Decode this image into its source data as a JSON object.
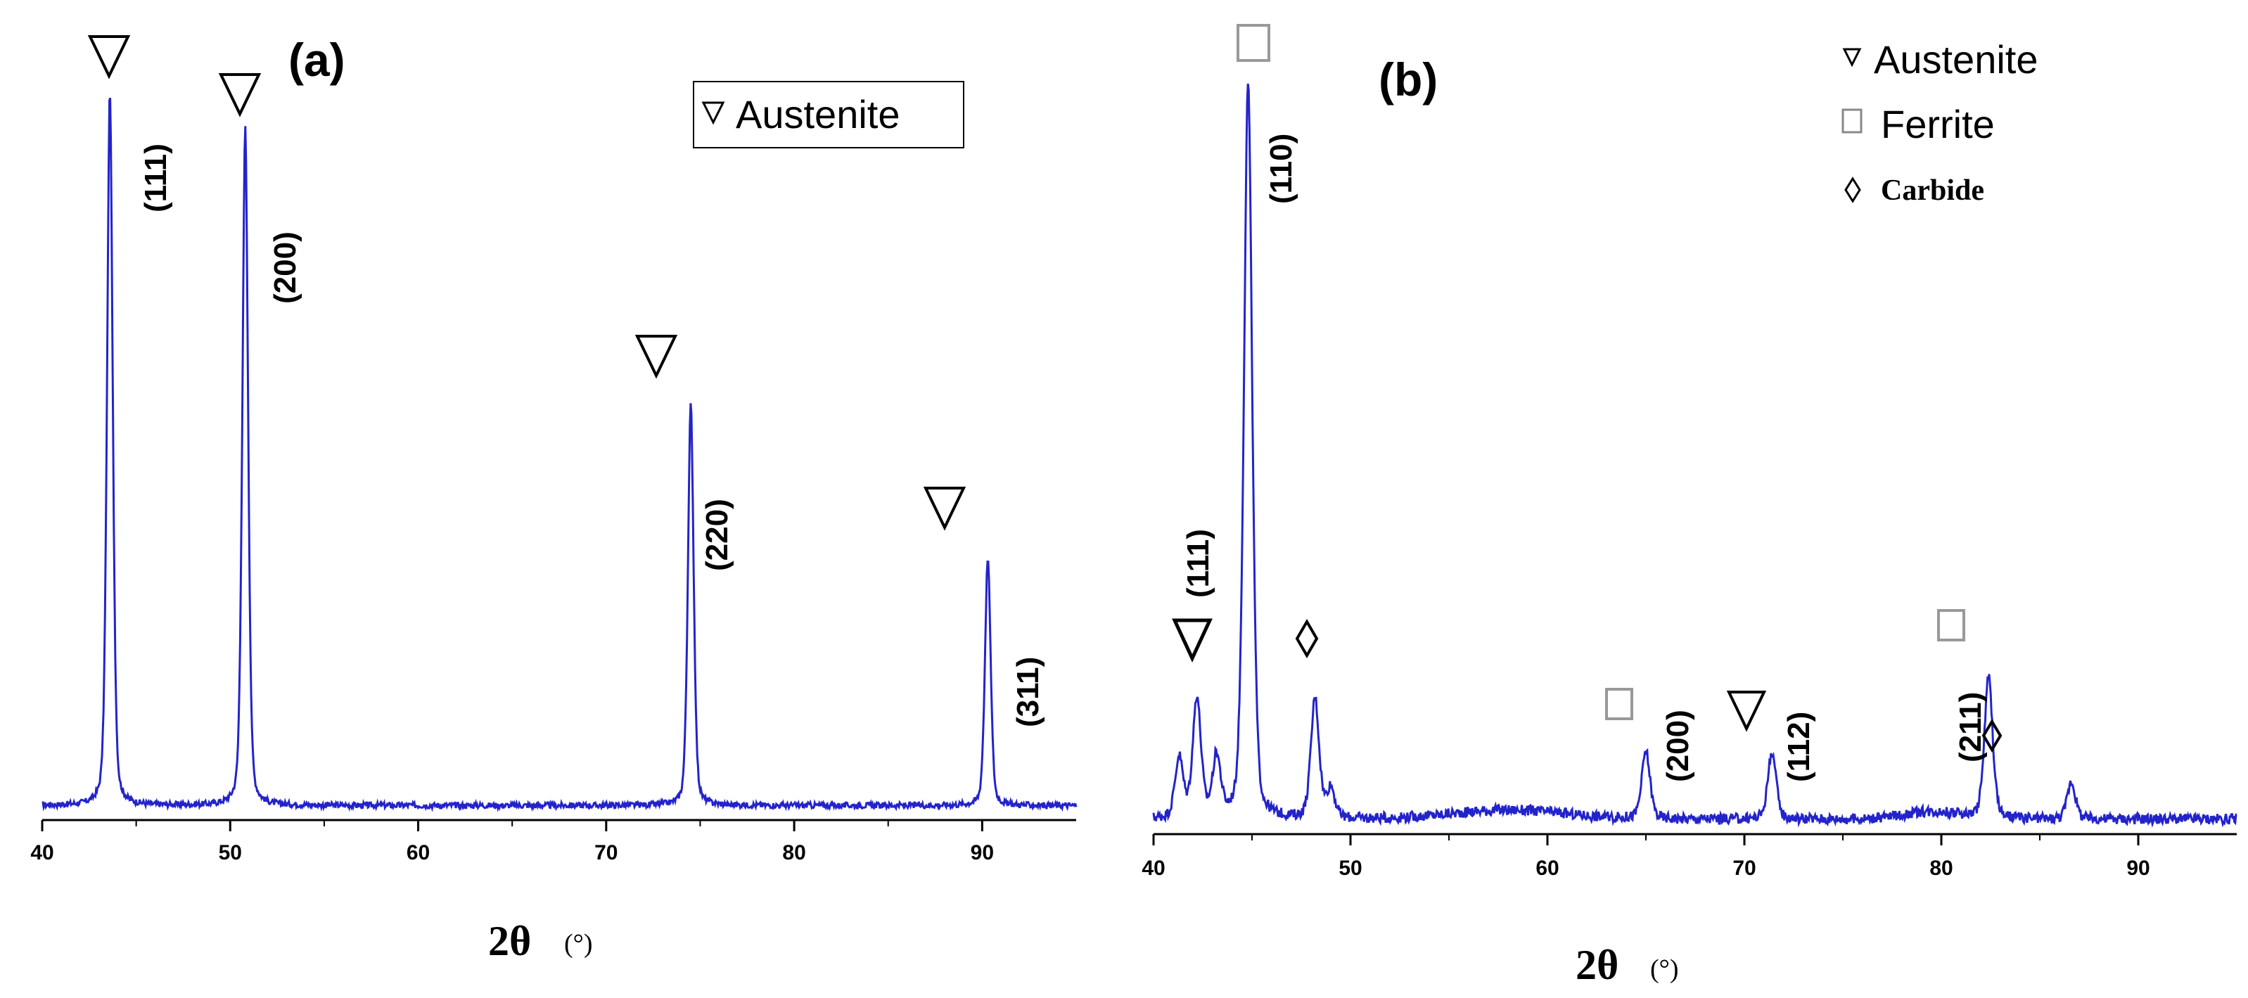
{
  "colors": {
    "line": "#2323cc",
    "axis": "#000000",
    "ferrite_marker": "#888888"
  },
  "panels": [
    {
      "panel_label": "(a)",
      "legend": [
        {
          "label": "Austenite",
          "marker": "triangle-down-icon"
        }
      ],
      "x_label_main": "2θ",
      "x_label_unit": "(°)",
      "x_ticks": [
        "40",
        "50",
        "60",
        "70",
        "80",
        "90"
      ],
      "peak_labels": [
        "(111)",
        "(200)",
        "(220)",
        "(311)"
      ]
    },
    {
      "panel_label": "(b)",
      "legend": [
        {
          "label": "Austenite",
          "marker": "triangle-down-icon"
        },
        {
          "label": "Ferrite",
          "marker": "square-icon"
        },
        {
          "label": "Carbide",
          "marker": "diamond-icon"
        }
      ],
      "x_label_main": "2θ",
      "x_label_unit": "(°)",
      "x_ticks": [
        "40",
        "50",
        "60",
        "70",
        "80",
        "90"
      ],
      "peak_labels": [
        "(111)",
        "(110)",
        "(200)",
        "(112)",
        "(211)"
      ]
    }
  ],
  "chart_data": [
    {
      "type": "line",
      "title": "(a)",
      "xlabel": "2θ (°)",
      "ylabel": "",
      "xlim": [
        40,
        95
      ],
      "ylim": [
        0,
        100
      ],
      "grid": false,
      "legend_position": "top-right",
      "peaks": [
        {
          "x": 43.6,
          "y": 100,
          "hkl": "(111)",
          "phase": "Austenite"
        },
        {
          "x": 50.8,
          "y": 95,
          "hkl": "(200)",
          "phase": "Austenite"
        },
        {
          "x": 74.5,
          "y": 57,
          "hkl": "(220)",
          "phase": "Austenite"
        },
        {
          "x": 90.3,
          "y": 36,
          "hkl": "(311)",
          "phase": "Austenite"
        }
      ],
      "baseline": 2
    },
    {
      "type": "line",
      "title": "(b)",
      "xlabel": "2θ (°)",
      "ylabel": "",
      "xlim": [
        40,
        95
      ],
      "ylim": [
        0,
        100
      ],
      "grid": false,
      "legend_position": "top-right",
      "peaks": [
        {
          "x": 41.3,
          "y": 10,
          "hkl": "",
          "phase": ""
        },
        {
          "x": 42.2,
          "y": 18,
          "hkl": "(111)",
          "phase": "Austenite"
        },
        {
          "x": 43.2,
          "y": 10,
          "hkl": "",
          "phase": ""
        },
        {
          "x": 44.8,
          "y": 100,
          "hkl": "(110)",
          "phase": "Ferrite"
        },
        {
          "x": 48.2,
          "y": 18,
          "hkl": "",
          "phase": "Carbide"
        },
        {
          "x": 49.0,
          "y": 6,
          "hkl": "",
          "phase": ""
        },
        {
          "x": 65.0,
          "y": 11,
          "hkl": "(200)",
          "phase": "Ferrite"
        },
        {
          "x": 71.4,
          "y": 11,
          "hkl": "(112)",
          "phase": "Austenite"
        },
        {
          "x": 82.4,
          "y": 21,
          "hkl": "(211)",
          "phase": "Ferrite"
        },
        {
          "x": 86.6,
          "y": 7,
          "hkl": "",
          "phase": "Carbide"
        }
      ],
      "baseline": 2
    }
  ]
}
